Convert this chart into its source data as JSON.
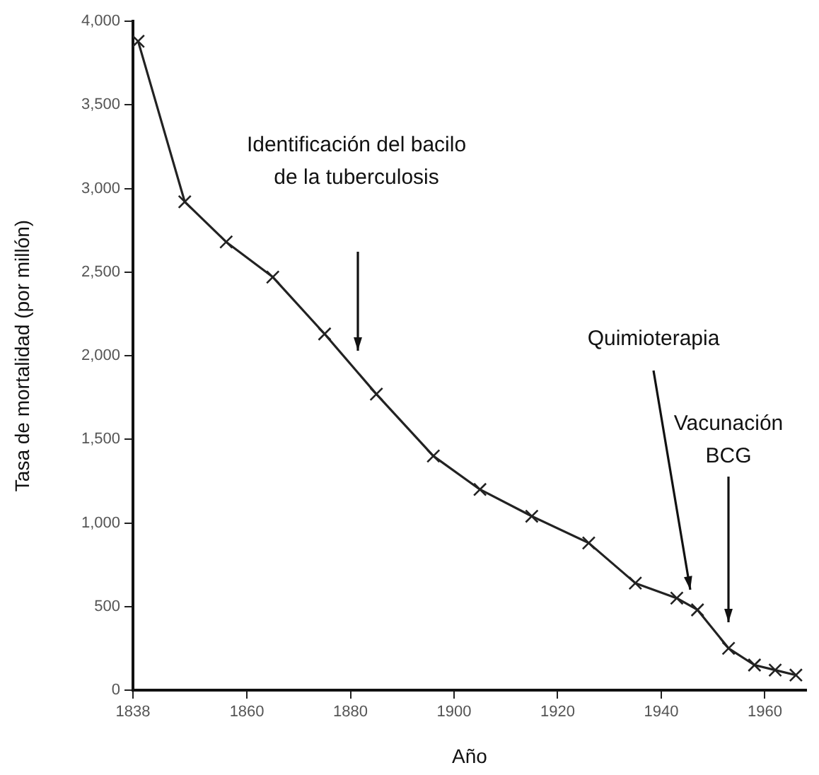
{
  "chart_data": {
    "type": "line",
    "xlabel": "Año",
    "ylabel": "Tasa de mortalidad (por millón)",
    "x": [
      1839,
      1848,
      1856,
      1865,
      1875,
      1885,
      1896,
      1905,
      1915,
      1926,
      1935,
      1943,
      1947,
      1953,
      1958,
      1962,
      1966
    ],
    "values": [
      3880,
      2920,
      2680,
      2470,
      2130,
      1770,
      1400,
      1200,
      1040,
      880,
      640,
      550,
      480,
      250,
      150,
      120,
      90
    ],
    "color": "#222222",
    "marker": "cross",
    "line_style": "solid",
    "grid": false,
    "legend": false,
    "xlim": [
      1838,
      1968
    ],
    "xticks": [
      1838,
      1860,
      1880,
      1900,
      1920,
      1940,
      1960
    ],
    "ylim": [
      0,
      4000
    ],
    "yticks": [
      {
        "value": 0,
        "label": "0"
      },
      {
        "value": 500,
        "label": "500"
      },
      {
        "value": 1000,
        "label": "1,000"
      },
      {
        "value": 1500,
        "label": "1,500"
      },
      {
        "value": 2000,
        "label": "2,000"
      },
      {
        "value": 2500,
        "label": "2,500"
      },
      {
        "value": 3000,
        "label": "3,000"
      },
      {
        "value": 3500,
        "label": "3,500"
      },
      {
        "value": 4000,
        "label": "4,000"
      }
    ],
    "annotations": [
      "Identificación del bacilo\nde la tuberculosis",
      "Quimioterapia",
      "Vacunación\nBCG"
    ]
  }
}
